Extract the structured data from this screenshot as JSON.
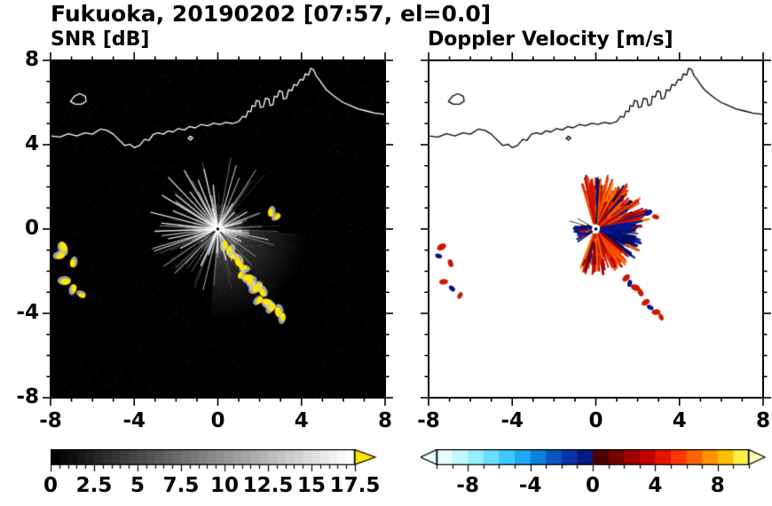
{
  "title": "Fukuoka, 20190202 [07:57, el=0.0]",
  "panels": {
    "snr": {
      "title": "SNR [dB]"
    },
    "doppler": {
      "title": "Doppler Velocity [m/s]"
    }
  },
  "chart_data": {
    "type": "heatmap",
    "title": "Fukuoka, 20190202 [07:57, el=0.0]",
    "panel_titles": [
      "SNR [dB]",
      "Doppler Velocity [m/s]"
    ],
    "axes": {
      "xlim": [
        -8,
        8
      ],
      "ylim": [
        -8,
        8
      ],
      "x_tick_values": [
        -8,
        -4,
        0,
        4,
        8
      ],
      "x_tick_labels": [
        "-8",
        "-4",
        "0",
        "4",
        "8"
      ],
      "y_tick_values": [
        8,
        4,
        0,
        -4,
        -8
      ],
      "y_tick_labels": [
        "8",
        "4",
        "0",
        "-4",
        "-8"
      ],
      "minor_step": 1,
      "grid": false
    },
    "colorbar_snr": {
      "range": [
        0,
        17.5
      ],
      "tick_step": 0.5,
      "label_values": [
        0,
        2.5,
        5,
        7.5,
        10,
        12.5,
        15,
        17.5
      ],
      "labels": [
        "0",
        "2.5",
        "5",
        "7.5",
        "10",
        "12.5",
        "15",
        "17.5"
      ],
      "start_color": "#000000",
      "end_color": "#ffffff",
      "steps": 35,
      "over_color": "#ffe400"
    },
    "colorbar_doppler": {
      "range": [
        -10,
        10
      ],
      "tick_step": 1,
      "label_values": [
        -8,
        -4,
        0,
        4,
        8
      ],
      "labels": [
        "-8",
        "-4",
        "0",
        "4",
        "8"
      ],
      "segments": [
        "#e6ffff",
        "#c2f8ff",
        "#98eeff",
        "#6adeff",
        "#3ec8fb",
        "#20a8f0",
        "#0c80dd",
        "#0a57c4",
        "#0832a8",
        "#051a80",
        "#4a0000",
        "#740000",
        "#9c0000",
        "#c30000",
        "#e51500",
        "#ff3800",
        "#ff6400",
        "#ff9100",
        "#ffc000",
        "#fff04a"
      ],
      "under_color": "#f0ffff",
      "over_color": "#ffffb0"
    },
    "radar_center": [
      0,
      0
    ],
    "coastline": {
      "main": [
        [
          -8.0,
          4.42
        ],
        [
          -7.55,
          4.36
        ],
        [
          -7.15,
          4.52
        ],
        [
          -6.75,
          4.42
        ],
        [
          -6.35,
          4.56
        ],
        [
          -6.0,
          4.5
        ],
        [
          -5.62,
          4.74
        ],
        [
          -5.3,
          4.68
        ],
        [
          -5.0,
          4.5
        ],
        [
          -4.7,
          4.2
        ],
        [
          -4.45,
          3.96
        ],
        [
          -4.2,
          4.02
        ],
        [
          -4.0,
          3.86
        ],
        [
          -3.75,
          3.96
        ],
        [
          -3.5,
          4.26
        ],
        [
          -3.3,
          4.2
        ],
        [
          -3.08,
          4.5
        ],
        [
          -2.85,
          4.56
        ],
        [
          -2.6,
          4.5
        ],
        [
          -2.38,
          4.66
        ],
        [
          -2.15,
          4.6
        ],
        [
          -1.9,
          4.76
        ],
        [
          -1.6,
          4.7
        ],
        [
          -1.35,
          4.86
        ],
        [
          -1.08,
          4.8
        ],
        [
          -0.8,
          4.96
        ],
        [
          -0.5,
          4.9
        ],
        [
          -0.2,
          5.02
        ],
        [
          0.1,
          4.96
        ],
        [
          0.4,
          5.06
        ],
        [
          0.7,
          5.0
        ],
        [
          1.0,
          5.1
        ],
        [
          1.18,
          5.34
        ],
        [
          1.34,
          5.3
        ],
        [
          1.44,
          5.6
        ],
        [
          1.58,
          5.56
        ],
        [
          1.64,
          5.86
        ],
        [
          1.78,
          5.82
        ],
        [
          1.84,
          6.1
        ],
        [
          1.98,
          6.06
        ],
        [
          2.04,
          5.76
        ],
        [
          2.18,
          5.8
        ],
        [
          2.28,
          6.2
        ],
        [
          2.44,
          6.16
        ],
        [
          2.5,
          5.86
        ],
        [
          2.64,
          5.9
        ],
        [
          2.7,
          6.3
        ],
        [
          2.84,
          6.26
        ],
        [
          2.94,
          6.56
        ],
        [
          3.08,
          6.5
        ],
        [
          3.14,
          6.16
        ],
        [
          3.28,
          6.2
        ],
        [
          3.38,
          6.6
        ],
        [
          3.54,
          6.56
        ],
        [
          3.64,
          6.86
        ],
        [
          3.78,
          6.8
        ],
        [
          3.94,
          7.1
        ],
        [
          4.08,
          7.06
        ],
        [
          4.18,
          7.36
        ],
        [
          4.34,
          7.3
        ],
        [
          4.44,
          7.62
        ],
        [
          4.58,
          7.56
        ],
        [
          4.7,
          7.26
        ],
        [
          4.84,
          7.1
        ],
        [
          5.0,
          6.86
        ],
        [
          5.2,
          6.6
        ],
        [
          5.44,
          6.4
        ],
        [
          5.7,
          6.2
        ],
        [
          6.0,
          6.0
        ],
        [
          6.34,
          5.86
        ],
        [
          6.7,
          5.7
        ],
        [
          7.1,
          5.6
        ],
        [
          7.5,
          5.5
        ],
        [
          8.0,
          5.44
        ]
      ],
      "island": [
        [
          -7.05,
          6.05
        ],
        [
          -6.86,
          6.3
        ],
        [
          -6.6,
          6.42
        ],
        [
          -6.34,
          6.3
        ],
        [
          -6.3,
          6.06
        ],
        [
          -6.52,
          5.92
        ],
        [
          -6.82,
          5.92
        ]
      ],
      "islet": [
        [
          -1.42,
          4.3
        ],
        [
          -1.32,
          4.4
        ],
        [
          -1.2,
          4.32
        ],
        [
          -1.3,
          4.22
        ]
      ]
    },
    "snr_panel": {
      "background": "#000000",
      "beam_color": "#ffffff",
      "noise_seed": 7,
      "noise_count": 5200,
      "beam_seed": 42,
      "beam_count": 150,
      "glow": {
        "a0": -95,
        "a1": -3,
        "radius": 4.3
      },
      "glow2": {
        "a0": -5,
        "a1": 35,
        "radius": 2.0
      },
      "bright_rays": [
        [
          96,
          2.1
        ],
        [
          103,
          2.9
        ],
        [
          112,
          2.5
        ],
        [
          120,
          3.2
        ],
        [
          127,
          2.2
        ],
        [
          134,
          3.4
        ],
        [
          141,
          2.6
        ],
        [
          149,
          3.1
        ],
        [
          158,
          2.3
        ],
        [
          166,
          3.3
        ],
        [
          174,
          2.7
        ],
        [
          182,
          3.0
        ],
        [
          191,
          2.4
        ],
        [
          199,
          3.2
        ],
        [
          207,
          2.0
        ],
        [
          60,
          1.4
        ],
        [
          45,
          1.1
        ],
        [
          30,
          1.6
        ],
        [
          15,
          1.2
        ],
        [
          352,
          1.5
        ],
        [
          250,
          1.3
        ],
        [
          268,
          1.1
        ],
        [
          285,
          1.5
        ],
        [
          300,
          1.0
        ]
      ],
      "dark_rays": [
        [
          212,
          3.3
        ],
        [
          224,
          3.1
        ],
        [
          308,
          2.9
        ]
      ],
      "echo_color": "#ffe600",
      "echo_fringe": "#c8c8c8",
      "echo_blobs": [
        [
          0.35,
          -0.75,
          0.9
        ],
        [
          0.55,
          -1.05,
          1.0
        ],
        [
          0.78,
          -1.32,
          0.9
        ],
        [
          0.98,
          -1.58,
          1.1
        ],
        [
          1.22,
          -1.82,
          0.9
        ],
        [
          1.08,
          -2.18,
          0.8
        ],
        [
          1.45,
          -2.32,
          1.2
        ],
        [
          1.62,
          -2.58,
          1.0
        ],
        [
          1.9,
          -2.78,
          1.3
        ],
        [
          2.14,
          -3.02,
          1.0
        ],
        [
          2.0,
          -3.38,
          0.9
        ],
        [
          2.38,
          -3.48,
          1.2
        ],
        [
          2.6,
          -3.72,
          1.0
        ],
        [
          2.88,
          -3.94,
          1.1
        ],
        [
          3.12,
          -4.18,
          0.9
        ],
        [
          -7.38,
          -0.85,
          1.2
        ],
        [
          -7.52,
          -1.28,
          1.0
        ],
        [
          -6.95,
          -1.62,
          0.9
        ],
        [
          -7.28,
          -2.5,
          1.1
        ],
        [
          -6.88,
          -2.82,
          0.9
        ],
        [
          -6.5,
          -3.15,
          0.8
        ],
        [
          2.52,
          0.78,
          0.9
        ],
        [
          2.86,
          0.58,
          0.8
        ]
      ]
    },
    "doppler_panel": {
      "background": "#ffffff",
      "red_palette": [
        "#8e0000",
        "#b00000",
        "#cd0f00",
        "#e52600",
        "#f44200",
        "#ff5c00",
        "#ff7300"
      ],
      "navy_palette": [
        "#000a5c",
        "#001078",
        "#001a96",
        "#0b24b4",
        "#041060"
      ],
      "sectors": [
        {
          "a0": 10,
          "a1": 108,
          "rmin": 0.3,
          "rmax": 2.6,
          "palette": "red",
          "n": 260,
          "seed": 11
        },
        {
          "a0": -38,
          "a1": 10,
          "rmin": 0.25,
          "rmax": 2.3,
          "palette": "navy",
          "n": 200,
          "seed": 12
        },
        {
          "a0": -112,
          "a1": -38,
          "rmin": 0.3,
          "rmax": 2.2,
          "palette": "red",
          "n": 200,
          "seed": 13
        },
        {
          "a0": 160,
          "a1": 215,
          "rmin": 0.25,
          "rmax": 1.05,
          "palette": "navy",
          "n": 80,
          "seed": 14
        }
      ],
      "dark_rays": [
        [
          150,
          1.0
        ],
        [
          163,
          1.3
        ]
      ],
      "specks": [
        [
          -7.38,
          -0.85,
          "red",
          1.1
        ],
        [
          -7.52,
          -1.28,
          "navy",
          0.8
        ],
        [
          -6.95,
          -1.62,
          "red",
          0.9
        ],
        [
          -7.28,
          -2.5,
          "red",
          1.0
        ],
        [
          -6.88,
          -2.82,
          "navy",
          0.8
        ],
        [
          -6.5,
          -3.15,
          "red",
          0.8
        ],
        [
          1.45,
          -2.32,
          "red",
          1.0
        ],
        [
          1.62,
          -2.58,
          "navy",
          0.8
        ],
        [
          1.9,
          -2.78,
          "red",
          1.1
        ],
        [
          2.14,
          -3.02,
          "red",
          0.9
        ],
        [
          2.38,
          -3.48,
          "red",
          1.0
        ],
        [
          2.6,
          -3.72,
          "navy",
          0.8
        ],
        [
          2.88,
          -3.94,
          "red",
          1.0
        ],
        [
          3.12,
          -4.18,
          "red",
          0.8
        ],
        [
          2.52,
          0.78,
          "navy",
          0.9
        ],
        [
          2.86,
          0.58,
          "red",
          0.8
        ]
      ]
    }
  }
}
